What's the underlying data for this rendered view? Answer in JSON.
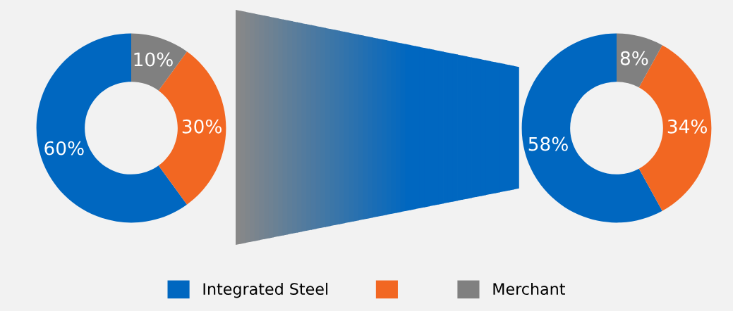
{
  "chart_data": [
    {
      "type": "donut",
      "categories": [
        "Integrated Steel",
        null,
        "Merchant"
      ],
      "values": [
        60,
        30,
        10
      ],
      "value_labels": [
        "60%",
        "30%",
        "10%"
      ],
      "colors": [
        "#0067c0",
        "#f26722",
        "#808080"
      ],
      "legend": "bottom"
    },
    {
      "type": "donut",
      "values": [
        58,
        34,
        8
      ],
      "value_labels": [
        "58%",
        "34%",
        "8%"
      ],
      "colors": [
        "#0067c0",
        "#f26722",
        "#808080"
      ]
    }
  ]
}
